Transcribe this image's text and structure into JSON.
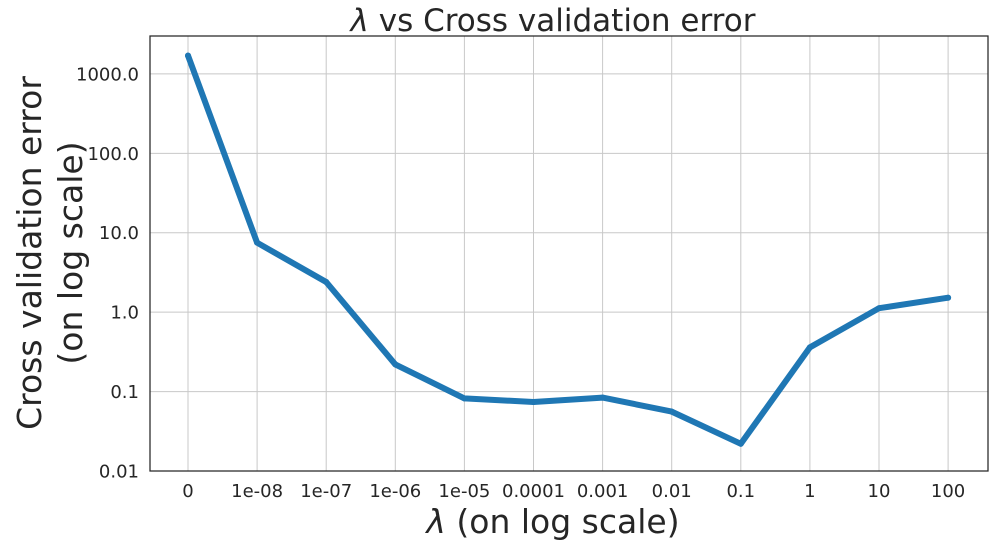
{
  "chart_data": {
    "type": "line",
    "title_symbol": "λ",
    "title_rest": " vs Cross validation error",
    "xlabel_symbol": "λ",
    "xlabel_rest": " (on log scale)",
    "ylabel_line1": "Cross validation error",
    "ylabel_line2": "(on log scale)",
    "x_scale": "categorical",
    "y_scale": "log",
    "grid": true,
    "legend": "none",
    "categories": [
      "0",
      "1e-08",
      "1e-07",
      "1e-06",
      "1e-05",
      "0.0001",
      "0.001",
      "0.01",
      "0.1",
      "1",
      "10",
      "100"
    ],
    "series": [
      {
        "color": "#1f77b4",
        "values": [
          1700,
          7.5,
          2.4,
          0.22,
          0.082,
          0.074,
          0.084,
          0.056,
          0.022,
          0.36,
          1.12,
          1.52
        ]
      }
    ],
    "ylim": [
      0.01,
      3000
    ],
    "yticks": [
      0.01,
      0.1,
      1.0,
      10.0,
      100.0,
      1000.0
    ],
    "ytick_labels": [
      "0.01",
      "0.1",
      "1.0",
      "10.0",
      "100.0",
      "1000.0"
    ]
  }
}
